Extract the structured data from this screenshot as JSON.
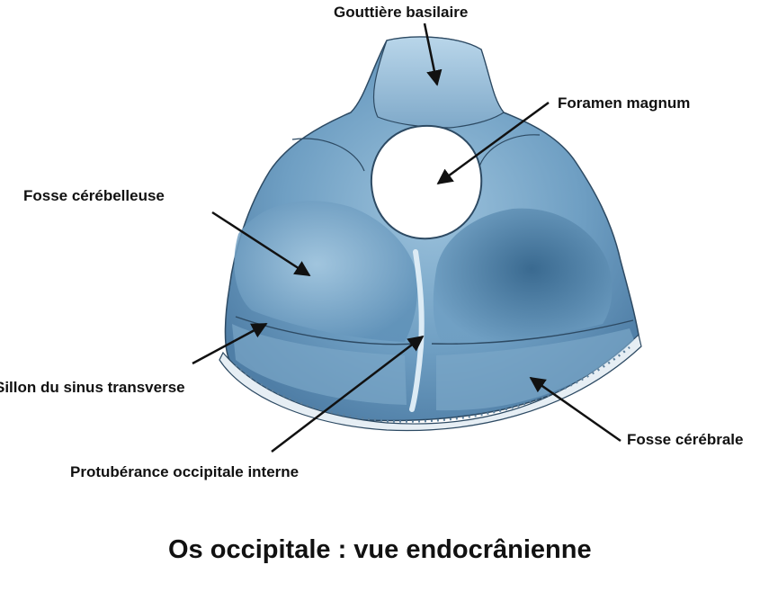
{
  "diagram": {
    "title": "Os occipitale : vue endocrânienne",
    "labels": {
      "gouttiere_basilaire": "Gouttière basilaire",
      "foramen_magnum": "Foramen magnum",
      "fosse_cerebelleuse": "Fosse cérébelleuse",
      "sillon_sinus_transverse": "Sillon du sinus transverse",
      "fosse_cerebrale": "Fosse cérébrale",
      "protuberance_occipitale_interne": "Protubérance occipitale interne"
    },
    "colors": {
      "bone_light": "#a9cbe2",
      "bone_mid": "#6f9fc3",
      "bone_dark": "#3f6f96",
      "outline": "#2d4a63",
      "arrow": "#111111"
    }
  }
}
